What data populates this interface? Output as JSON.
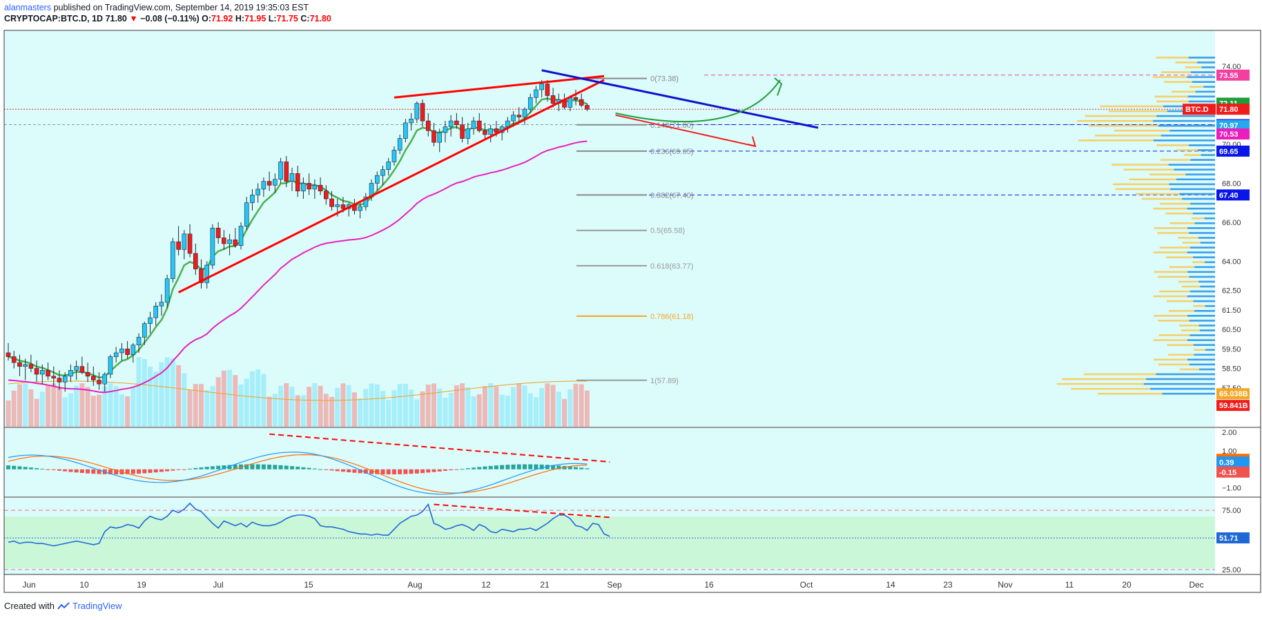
{
  "header": {
    "author": "alanmasters",
    "published": "published on TradingView.com, September 14, 2019 19:35:03 EST",
    "symbol": "CRYPTOCAP:BTC.D, 1D",
    "last": "71.80",
    "change": "−0.08 (−0.11%)",
    "o_label": "O:",
    "o": "71.92",
    "h_label": "H:",
    "h": "71.95",
    "l_label": "L:",
    "l": "71.75",
    "c_label": "C:",
    "c": "71.80"
  },
  "footer": {
    "created": "Created with",
    "brand": "TradingView"
  },
  "colors": {
    "background": "#dcfbfb",
    "up": "#26c6f5",
    "down": "#ef1c1c",
    "ema_short": "#4caf50",
    "ema_long": "#e91ebd",
    "trend_red": "#ff0000",
    "trend_blue": "#1010d0"
  },
  "chart_data": [
    {
      "type": "candlestick",
      "title": "CRYPTOCAP:BTC.D, 1D",
      "x_ticks": [
        "Jun",
        "10",
        "19",
        "Jul",
        "15",
        "Aug",
        "12",
        "21",
        "Sep",
        "16",
        "Oct",
        "14",
        "23",
        "Nov",
        "11",
        "20",
        "Dec"
      ],
      "y_ticks": [
        "74.00",
        "72.00",
        "70.00",
        "68.00",
        "66.00",
        "64.00",
        "62.50",
        "61.50",
        "60.50",
        "59.50",
        "58.50",
        "57.50",
        "56.50"
      ],
      "ylim": [
        56.5,
        74.5
      ],
      "candles": [
        [
          59.3,
          59.8,
          58.9,
          59.1
        ],
        [
          59.1,
          59.4,
          58.5,
          58.8
        ],
        [
          58.8,
          59.2,
          58.1,
          58.6
        ],
        [
          58.6,
          59.0,
          57.9,
          58.7
        ],
        [
          58.7,
          59.2,
          58.3,
          58.5
        ],
        [
          58.5,
          58.9,
          57.8,
          58.2
        ],
        [
          58.2,
          58.7,
          57.7,
          58.4
        ],
        [
          58.4,
          58.8,
          57.9,
          58.1
        ],
        [
          58.1,
          58.6,
          57.6,
          58.0
        ],
        [
          58.0,
          58.4,
          57.4,
          57.8
        ],
        [
          57.8,
          58.3,
          57.3,
          58.1
        ],
        [
          58.1,
          58.7,
          57.8,
          58.4
        ],
        [
          58.4,
          58.9,
          57.9,
          58.6
        ],
        [
          58.6,
          59.1,
          58.2,
          58.3
        ],
        [
          58.3,
          58.8,
          57.8,
          58.1
        ],
        [
          58.1,
          58.6,
          57.6,
          57.9
        ],
        [
          57.9,
          58.3,
          57.4,
          57.7
        ],
        [
          57.7,
          58.3,
          57.3,
          58.2
        ],
        [
          58.2,
          59.2,
          58.0,
          59.1
        ],
        [
          59.1,
          59.6,
          58.8,
          59.3
        ],
        [
          59.3,
          59.8,
          58.9,
          59.5
        ],
        [
          59.5,
          59.9,
          59.0,
          59.2
        ],
        [
          59.2,
          59.8,
          58.8,
          59.7
        ],
        [
          59.7,
          60.3,
          59.3,
          60.1
        ],
        [
          60.1,
          60.9,
          59.7,
          60.8
        ],
        [
          60.8,
          61.4,
          60.3,
          61.1
        ],
        [
          61.1,
          61.9,
          60.7,
          61.7
        ],
        [
          61.7,
          62.3,
          61.2,
          61.9
        ],
        [
          61.9,
          63.3,
          61.6,
          63.1
        ],
        [
          63.1,
          65.2,
          62.9,
          65.0
        ],
        [
          65.0,
          65.8,
          64.3,
          64.6
        ],
        [
          64.6,
          65.6,
          64.1,
          65.4
        ],
        [
          65.4,
          65.9,
          64.2,
          64.4
        ],
        [
          64.4,
          64.9,
          63.3,
          63.6
        ],
        [
          63.6,
          64.1,
          62.6,
          62.9
        ],
        [
          62.9,
          64.0,
          62.6,
          63.8
        ],
        [
          63.8,
          65.9,
          63.6,
          65.7
        ],
        [
          65.7,
          66.0,
          64.9,
          65.2
        ],
        [
          65.2,
          65.6,
          64.6,
          64.9
        ],
        [
          64.9,
          65.4,
          64.3,
          65.1
        ],
        [
          65.1,
          65.7,
          64.7,
          64.8
        ],
        [
          64.8,
          66.0,
          64.6,
          65.8
        ],
        [
          65.8,
          67.3,
          65.6,
          67.0
        ],
        [
          67.0,
          67.7,
          66.6,
          67.4
        ],
        [
          67.4,
          68.0,
          67.0,
          67.7
        ],
        [
          67.7,
          68.3,
          67.3,
          68.1
        ],
        [
          68.1,
          68.6,
          67.6,
          67.9
        ],
        [
          67.9,
          68.5,
          67.5,
          68.2
        ],
        [
          68.2,
          69.3,
          68.0,
          69.1
        ],
        [
          69.1,
          69.4,
          67.8,
          68.1
        ],
        [
          68.1,
          68.8,
          67.6,
          68.5
        ],
        [
          68.5,
          68.9,
          67.3,
          67.6
        ],
        [
          67.6,
          68.3,
          67.2,
          68.0
        ],
        [
          68.0,
          68.5,
          67.4,
          67.7
        ],
        [
          67.7,
          68.2,
          67.2,
          67.9
        ],
        [
          67.9,
          68.3,
          67.4,
          67.6
        ],
        [
          67.6,
          67.9,
          66.9,
          67.2
        ],
        [
          67.2,
          67.6,
          66.6,
          66.8
        ],
        [
          66.8,
          67.2,
          66.3,
          66.9
        ],
        [
          66.9,
          67.3,
          66.5,
          66.7
        ],
        [
          66.7,
          67.0,
          66.3,
          66.9
        ],
        [
          66.9,
          67.2,
          66.4,
          66.6
        ],
        [
          66.6,
          67.0,
          66.2,
          66.8
        ],
        [
          66.8,
          67.5,
          66.6,
          67.3
        ],
        [
          67.3,
          68.2,
          67.1,
          68.0
        ],
        [
          68.0,
          68.6,
          67.6,
          68.4
        ],
        [
          68.4,
          68.9,
          67.9,
          68.7
        ],
        [
          68.7,
          69.3,
          68.4,
          69.1
        ],
        [
          69.1,
          69.9,
          68.9,
          69.7
        ],
        [
          69.7,
          70.5,
          69.5,
          70.3
        ],
        [
          70.3,
          71.3,
          70.1,
          71.1
        ],
        [
          71.1,
          71.6,
          70.7,
          71.3
        ],
        [
          71.3,
          72.2,
          71.1,
          72.1
        ],
        [
          72.1,
          72.3,
          70.9,
          71.2
        ],
        [
          71.2,
          71.6,
          70.4,
          70.7
        ],
        [
          70.7,
          71.1,
          69.9,
          70.1
        ],
        [
          70.1,
          70.8,
          69.6,
          70.6
        ],
        [
          70.6,
          71.2,
          70.1,
          70.9
        ],
        [
          70.9,
          71.5,
          70.4,
          71.2
        ],
        [
          71.2,
          71.6,
          70.8,
          71.0
        ],
        [
          71.0,
          71.4,
          70.1,
          70.3
        ],
        [
          70.3,
          71.1,
          70.0,
          70.8
        ],
        [
          70.8,
          71.4,
          70.5,
          71.2
        ],
        [
          71.2,
          71.6,
          70.6,
          70.7
        ],
        [
          70.7,
          71.1,
          70.2,
          70.5
        ],
        [
          70.5,
          71.0,
          70.1,
          70.8
        ],
        [
          70.8,
          71.2,
          70.4,
          70.6
        ],
        [
          70.6,
          71.0,
          70.2,
          70.9
        ],
        [
          70.9,
          71.4,
          70.6,
          71.2
        ],
        [
          71.2,
          71.7,
          70.9,
          71.5
        ],
        [
          71.5,
          71.9,
          71.1,
          71.4
        ],
        [
          71.4,
          71.9,
          71.0,
          71.8
        ],
        [
          71.8,
          72.6,
          71.6,
          72.4
        ],
        [
          72.4,
          73.0,
          72.1,
          72.8
        ],
        [
          72.8,
          73.3,
          72.4,
          73.1
        ],
        [
          73.1,
          73.3,
          72.2,
          72.5
        ],
        [
          72.5,
          72.9,
          71.9,
          72.1
        ],
        [
          72.1,
          72.6,
          71.7,
          72.3
        ],
        [
          72.3,
          72.6,
          71.8,
          71.9
        ],
        [
          71.9,
          72.5,
          71.7,
          72.4
        ],
        [
          72.4,
          72.8,
          72.0,
          72.3
        ],
        [
          72.3,
          72.6,
          71.9,
          72.0
        ],
        [
          72.0,
          72.1,
          71.7,
          71.8
        ]
      ],
      "fib_levels": [
        {
          "label": "0(73.38)",
          "value": 73.38
        },
        {
          "label": "0.148(71.00)",
          "value": 71.0
        },
        {
          "label": "0.236(69.65)",
          "value": 69.65
        },
        {
          "label": "0.382(67.40)",
          "value": 67.4
        },
        {
          "label": "0.5(65.58)",
          "value": 65.58
        },
        {
          "label": "0.618(63.77)",
          "value": 63.77
        },
        {
          "label": "0.786(61.18)",
          "value": 61.18
        },
        {
          "label": "1(57.89)",
          "value": 57.89
        }
      ],
      "horizontal_levels": [
        73.55,
        71.01,
        69.65,
        67.4
      ],
      "price_badges": [
        {
          "label": "73.55",
          "value": 73.55,
          "color": "#f23fa0"
        },
        {
          "label": "72.11",
          "value": 72.11,
          "color": "#1e9e3a"
        },
        {
          "label": "BTC.D",
          "value": 71.8,
          "color": "#ef1c1c"
        },
        {
          "label": "71.80",
          "value": 71.8,
          "color": "#ef1c1c"
        },
        {
          "label": "71.01",
          "value": 71.01,
          "color": "#0a16e8"
        },
        {
          "label": "70.97",
          "value": 70.97,
          "color": "#26a7f0"
        },
        {
          "label": "70.53",
          "value": 70.53,
          "color": "#e91ebd"
        },
        {
          "label": "69.65",
          "value": 69.65,
          "color": "#0a16e8"
        },
        {
          "label": "67.40",
          "value": 67.4,
          "color": "#0a16e8"
        },
        {
          "label": "65.038B",
          "value": 57.2,
          "color": "#f5a623"
        },
        {
          "label": "59.841B",
          "value": 56.6,
          "color": "#ef1c1c"
        }
      ]
    },
    {
      "type": "histogram",
      "title": "",
      "y_ticks": [
        "2.00",
        "1.00",
        "0.00",
        "−1.00"
      ],
      "ylim": [
        -1.2,
        2.0
      ],
      "badges": [
        {
          "label": "0.54",
          "value": 0.54,
          "color": "#ff6d00"
        },
        {
          "label": "0.39",
          "value": 0.39,
          "color": "#2196f3"
        },
        {
          "label": "-0.15",
          "value": -0.15,
          "color": "#ef5350"
        }
      ]
    },
    {
      "type": "line",
      "title": "",
      "y_ticks": [
        "75.00",
        "50.00",
        "25.00"
      ],
      "ylim": [
        22,
        85
      ],
      "levels": [
        75,
        25
      ],
      "badge": {
        "label": "51.71",
        "value": 51.71,
        "color": "#1e68d6"
      },
      "values": [
        48,
        49,
        47,
        48,
        48,
        47,
        47,
        46,
        45,
        46,
        47,
        48,
        49,
        48,
        47,
        46,
        47,
        57,
        61,
        60,
        61,
        63,
        62,
        60,
        66,
        70,
        68,
        67,
        70,
        75,
        73,
        76,
        81,
        76,
        74,
        69,
        64,
        60,
        66,
        64,
        62,
        64,
        61,
        65,
        63,
        62,
        62,
        63,
        65,
        68,
        70,
        71,
        71,
        70,
        68,
        62,
        61,
        61,
        60,
        59,
        57,
        56,
        55,
        55,
        54,
        55,
        54,
        54,
        59,
        64,
        67,
        70,
        71,
        74,
        80,
        64,
        62,
        59,
        60,
        62,
        63,
        61,
        58,
        63,
        61,
        57,
        56,
        59,
        58,
        57,
        59,
        59,
        60,
        58,
        61,
        64,
        68,
        71,
        71,
        68,
        62,
        61,
        58,
        64,
        63,
        55,
        53
      ]
    }
  ]
}
